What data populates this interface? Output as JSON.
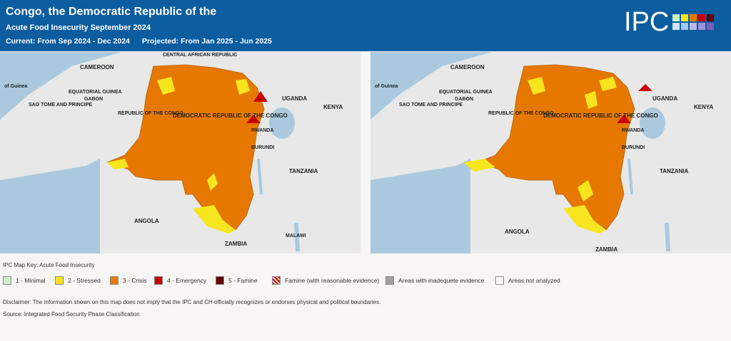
{
  "header": {
    "title": "Congo, the Democratic Republic of the",
    "subtitle": "Acute Food Insecurity September 2024",
    "current": "Current: From Sep 2024 - Dec 2024",
    "projected": "Projected: From Jan 2025 - Jun 2025",
    "logo_text": "IPC"
  },
  "logo_squares": [
    "#c8f2c8",
    "#f7e51e",
    "#e67800",
    "#c80000",
    "#640000",
    "#cfe4f5",
    "#9fc8eb",
    "#b8b8e6",
    "#9e8fd6",
    "#7a5fb8"
  ],
  "map_labels": {
    "central_african_republic": "CENTRAL AFRICAN REPUBLIC",
    "cameroon": "CAMEROON",
    "gulf": "of Guinea",
    "equatorial_guinea": "EQUATORIAL GUINEA",
    "sao_tome": "SAO TOME AND PRINCIPE",
    "gabon": "GABON",
    "republic_congo": "REPUBLIC OF THE CONGO",
    "drc": "DEMOCRATIC REPUBLIC OF THE CONGO",
    "uganda": "UGANDA",
    "kenya": "KENYA",
    "rwanda": "RWANDA",
    "burundi": "BURUNDI",
    "tanzania": "TANZANIA",
    "angola": "ANGOLA",
    "zambia": "ZAMBIA",
    "malawi": "MALAWI"
  },
  "legend": {
    "title": "IPC Map Key: Acute Food Insecurity",
    "items": [
      {
        "label": "1 - Minimal",
        "color": "#cdf0cd"
      },
      {
        "label": "2 - Stressed",
        "color": "#f7e51e"
      },
      {
        "label": "3 - Crisis",
        "color": "#e67800"
      },
      {
        "label": "4 - Emergency",
        "color": "#c80000"
      },
      {
        "label": "5 - Famine",
        "color": "#640000"
      },
      {
        "label": "Famine (with reasonable evidence)",
        "color": "#d9a0a0"
      },
      {
        "label": "Areas with inadequete evidence",
        "color": "#a0a0a0"
      },
      {
        "label": "Areas not analyzed",
        "color": "#ffffff"
      }
    ]
  },
  "disclaimer": "Disclaimer: The information shown on this map does not imply that the IPC and CH officially recognizes or endorses physical and political boundaries.",
  "source": "Source: Integrated Food Security Phase Classification"
}
